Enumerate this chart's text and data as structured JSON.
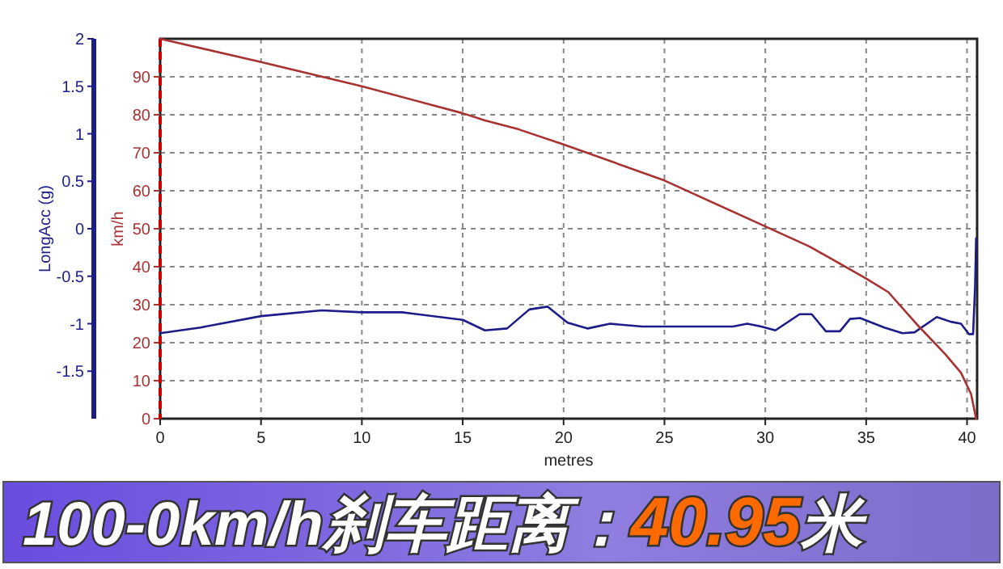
{
  "chart_data": {
    "type": "line",
    "xlabel": "metres",
    "ylabel": "LongAcc (g)",
    "y2label": "km/h",
    "xlim": [
      0,
      40.5
    ],
    "xticks": [
      0,
      5,
      10,
      15,
      20,
      25,
      30,
      35,
      40
    ],
    "ylim": [
      -2,
      2
    ],
    "yticks": [
      -1.5,
      -1,
      -0.5,
      0,
      0.5,
      1,
      1.5,
      2
    ],
    "y2lim": [
      0,
      100
    ],
    "y2ticks": [
      0,
      10,
      20,
      30,
      40,
      50,
      60,
      70,
      80,
      90
    ],
    "grid": true,
    "series": [
      {
        "color": "#1c1c8a",
        "axis": "y",
        "x": [
          0,
          2,
          5,
          8,
          10,
          12,
          15,
          16.1,
          17.2,
          18.3,
          19.2,
          20.2,
          21.2,
          22.3,
          23.9,
          28.4,
          29.1,
          29.8,
          30.5,
          31.7,
          32.3,
          33.0,
          33.7,
          34.2,
          34.7,
          35.9,
          36.8,
          37.4,
          38.5,
          39.2,
          39.7,
          40.1,
          40.3,
          40.4,
          40.45
        ],
        "values": [
          -1.1,
          -1.04,
          -0.92,
          -0.86,
          -0.88,
          -0.88,
          -0.96,
          -1.07,
          -1.05,
          -0.85,
          -0.82,
          -0.99,
          -1.05,
          -1.0,
          -1.03,
          -1.03,
          -1.0,
          -1.03,
          -1.07,
          -0.9,
          -0.9,
          -1.08,
          -1.08,
          -0.95,
          -0.94,
          -1.04,
          -1.1,
          -1.09,
          -0.93,
          -0.98,
          -1.0,
          -1.11,
          -1.11,
          -0.61,
          -0.1
        ]
      },
      {
        "color": "#a83232",
        "axis": "y2",
        "x": [
          0,
          5,
          10,
          15,
          16.1,
          17.75,
          20,
          25,
          30,
          32.2,
          35,
          36.1,
          37.5,
          38.9,
          39.7,
          40.2,
          40.45
        ],
        "values": [
          100,
          93.9,
          87.5,
          80.4,
          78.5,
          76.2,
          72.2,
          62.7,
          50.6,
          45.3,
          36.9,
          33.3,
          24.9,
          17.1,
          12.1,
          6.5,
          0
        ]
      }
    ],
    "ref_lines": [
      {
        "axis": "x",
        "value": 0,
        "color": "#cc0000",
        "line_style": "dashed"
      }
    ],
    "annotations": [
      "100-0km/h刹车距离：",
      "40.95",
      "米"
    ]
  }
}
